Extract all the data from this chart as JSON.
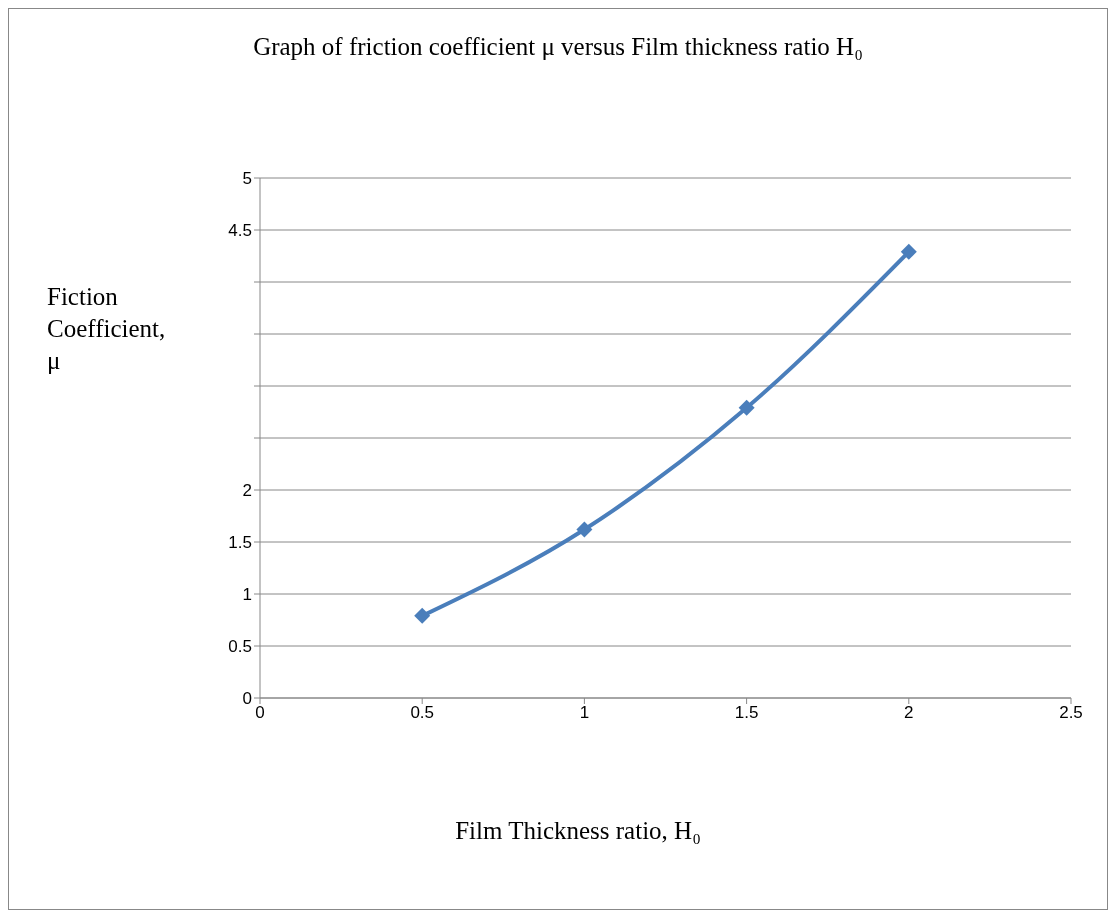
{
  "chart_data": {
    "type": "line",
    "title": "Graph of friction coefficient μ versus Film thickness ratio H₀",
    "xlabel": "Film Thickness ratio, H₀",
    "ylabel": "Fiction Coefficient, μ",
    "x": [
      0.5,
      1,
      1.5,
      2
    ],
    "series": [
      {
        "color": "#4a7ebb",
        "values": [
          0.79,
          1.62,
          2.79,
          4.29
        ]
      }
    ],
    "xlim": [
      0,
      2.5
    ],
    "xticks": [
      0,
      0.5,
      1,
      1.5,
      2,
      2.5
    ],
    "ylim": [
      0,
      5
    ],
    "yticks": [
      0,
      0.5,
      1,
      1.5,
      2,
      {
        "value": 2.5,
        "label": null
      },
      {
        "value": 3,
        "label": null
      },
      {
        "value": 3.5,
        "label": null
      },
      {
        "value": 4,
        "label": null
      },
      4.5,
      5
    ],
    "grid": "y",
    "legend": false,
    "marker": "diamond",
    "line_style": "solid"
  }
}
